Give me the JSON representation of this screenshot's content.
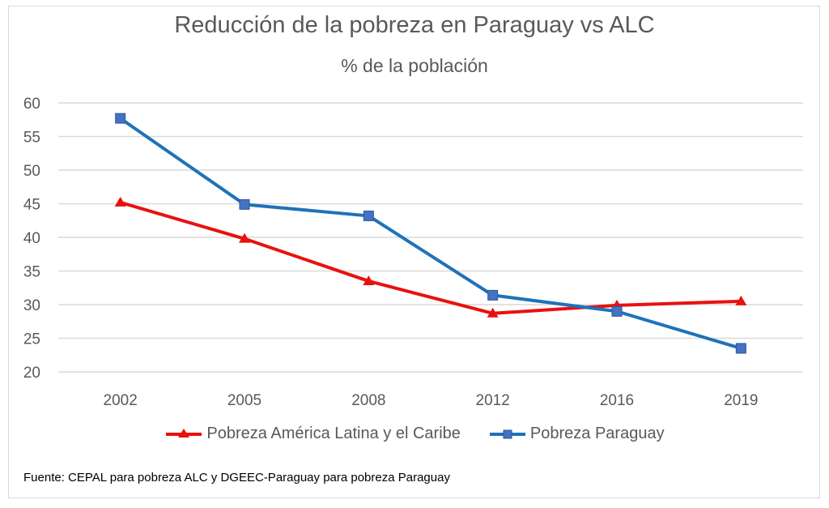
{
  "chart_data": {
    "type": "line",
    "title": "Reducción de la pobreza en Paraguay vs ALC",
    "subtitle": "% de la población",
    "xlabel": "",
    "ylabel": "",
    "categories": [
      "2002",
      "2005",
      "2008",
      "2012",
      "2016",
      "2019"
    ],
    "ylim": [
      20,
      60
    ],
    "yticks": [
      60,
      55,
      50,
      45,
      40,
      35,
      30,
      25,
      20
    ],
    "grid": true,
    "legend_position": "bottom",
    "series": [
      {
        "name": "Pobreza América Latina y el Caribe",
        "color": "#e8110f",
        "marker": "triangle",
        "values": [
          45.2,
          39.8,
          33.5,
          28.7,
          29.9,
          30.5
        ]
      },
      {
        "name": "Pobreza Paraguay",
        "color": "#1f72b8",
        "marker": "square",
        "values": [
          57.7,
          44.9,
          43.2,
          31.4,
          29.0,
          23.5
        ]
      }
    ],
    "source_note": "Fuente: CEPAL para pobreza ALC y DGEEC-Paraguay para pobreza Paraguay"
  }
}
